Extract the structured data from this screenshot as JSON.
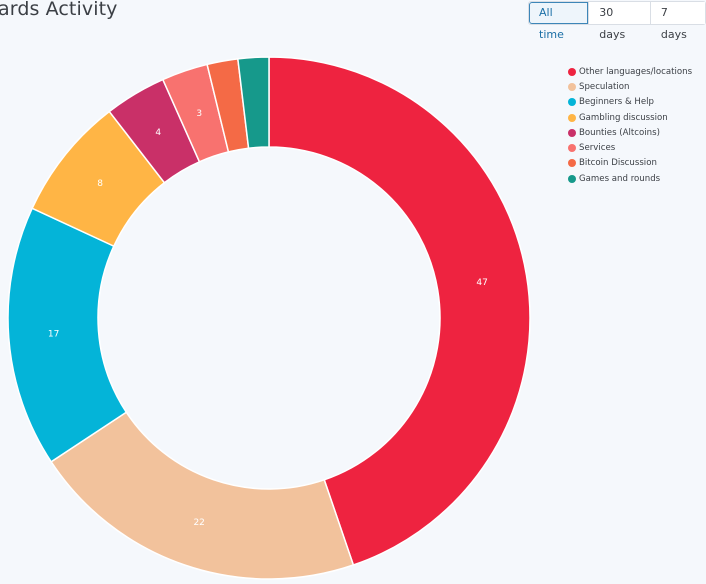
{
  "header": {
    "title": "ards Activity",
    "ranges": [
      {
        "label": "All time",
        "active": true
      },
      {
        "label": "30 days",
        "active": false
      },
      {
        "label": "7 days",
        "active": false
      }
    ]
  },
  "chart_data": {
    "type": "pie",
    "donut": true,
    "legend_position": "top-right",
    "categories": [
      "Other languages/locations",
      "Speculation",
      "Beginners & Help",
      "Gambling discussion",
      "Bounties (Altcoins)",
      "Services",
      "Bitcoin Discussion",
      "Games and rounds"
    ],
    "values": [
      47,
      22,
      17,
      8,
      4,
      3,
      2,
      2
    ],
    "labels": [
      "47",
      "22",
      "17",
      "8",
      "4",
      "3",
      "",
      ""
    ],
    "colors": [
      "#ee2340",
      "#f2c29c",
      "#04b4d8",
      "#ffb545",
      "#c93068",
      "#f8726f",
      "#f46a46",
      "#16998b"
    ]
  }
}
